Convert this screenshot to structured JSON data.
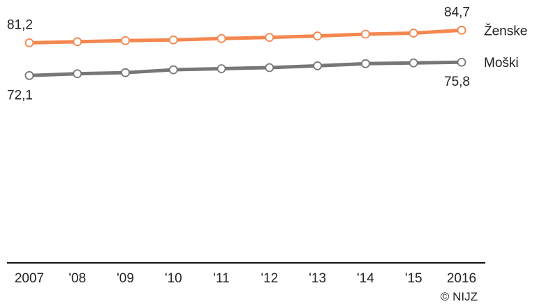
{
  "chart_data": {
    "type": "line",
    "title": "",
    "xlabel": "",
    "ylabel": "",
    "categories": [
      "2007",
      "'08",
      "'09",
      "'10",
      "'11",
      "'12",
      "'13",
      "'14",
      "'15",
      "2016"
    ],
    "series": [
      {
        "name": "Ženske",
        "color": "#f4874f",
        "values": [
          81.2,
          81.5,
          81.8,
          82.0,
          82.4,
          82.7,
          83.1,
          83.6,
          83.9,
          84.7
        ],
        "first_label": "81,2",
        "last_label": "84,7"
      },
      {
        "name": "Moški",
        "color": "#777777",
        "values": [
          72.1,
          72.6,
          72.9,
          73.7,
          74.0,
          74.3,
          74.8,
          75.4,
          75.6,
          75.8
        ],
        "first_label": "72,1",
        "last_label": "75,8"
      }
    ],
    "ylim": [
      20,
      90
    ],
    "grid": false,
    "legend": "right-end labels"
  },
  "footer": {
    "copyright": "© NIJZ"
  }
}
